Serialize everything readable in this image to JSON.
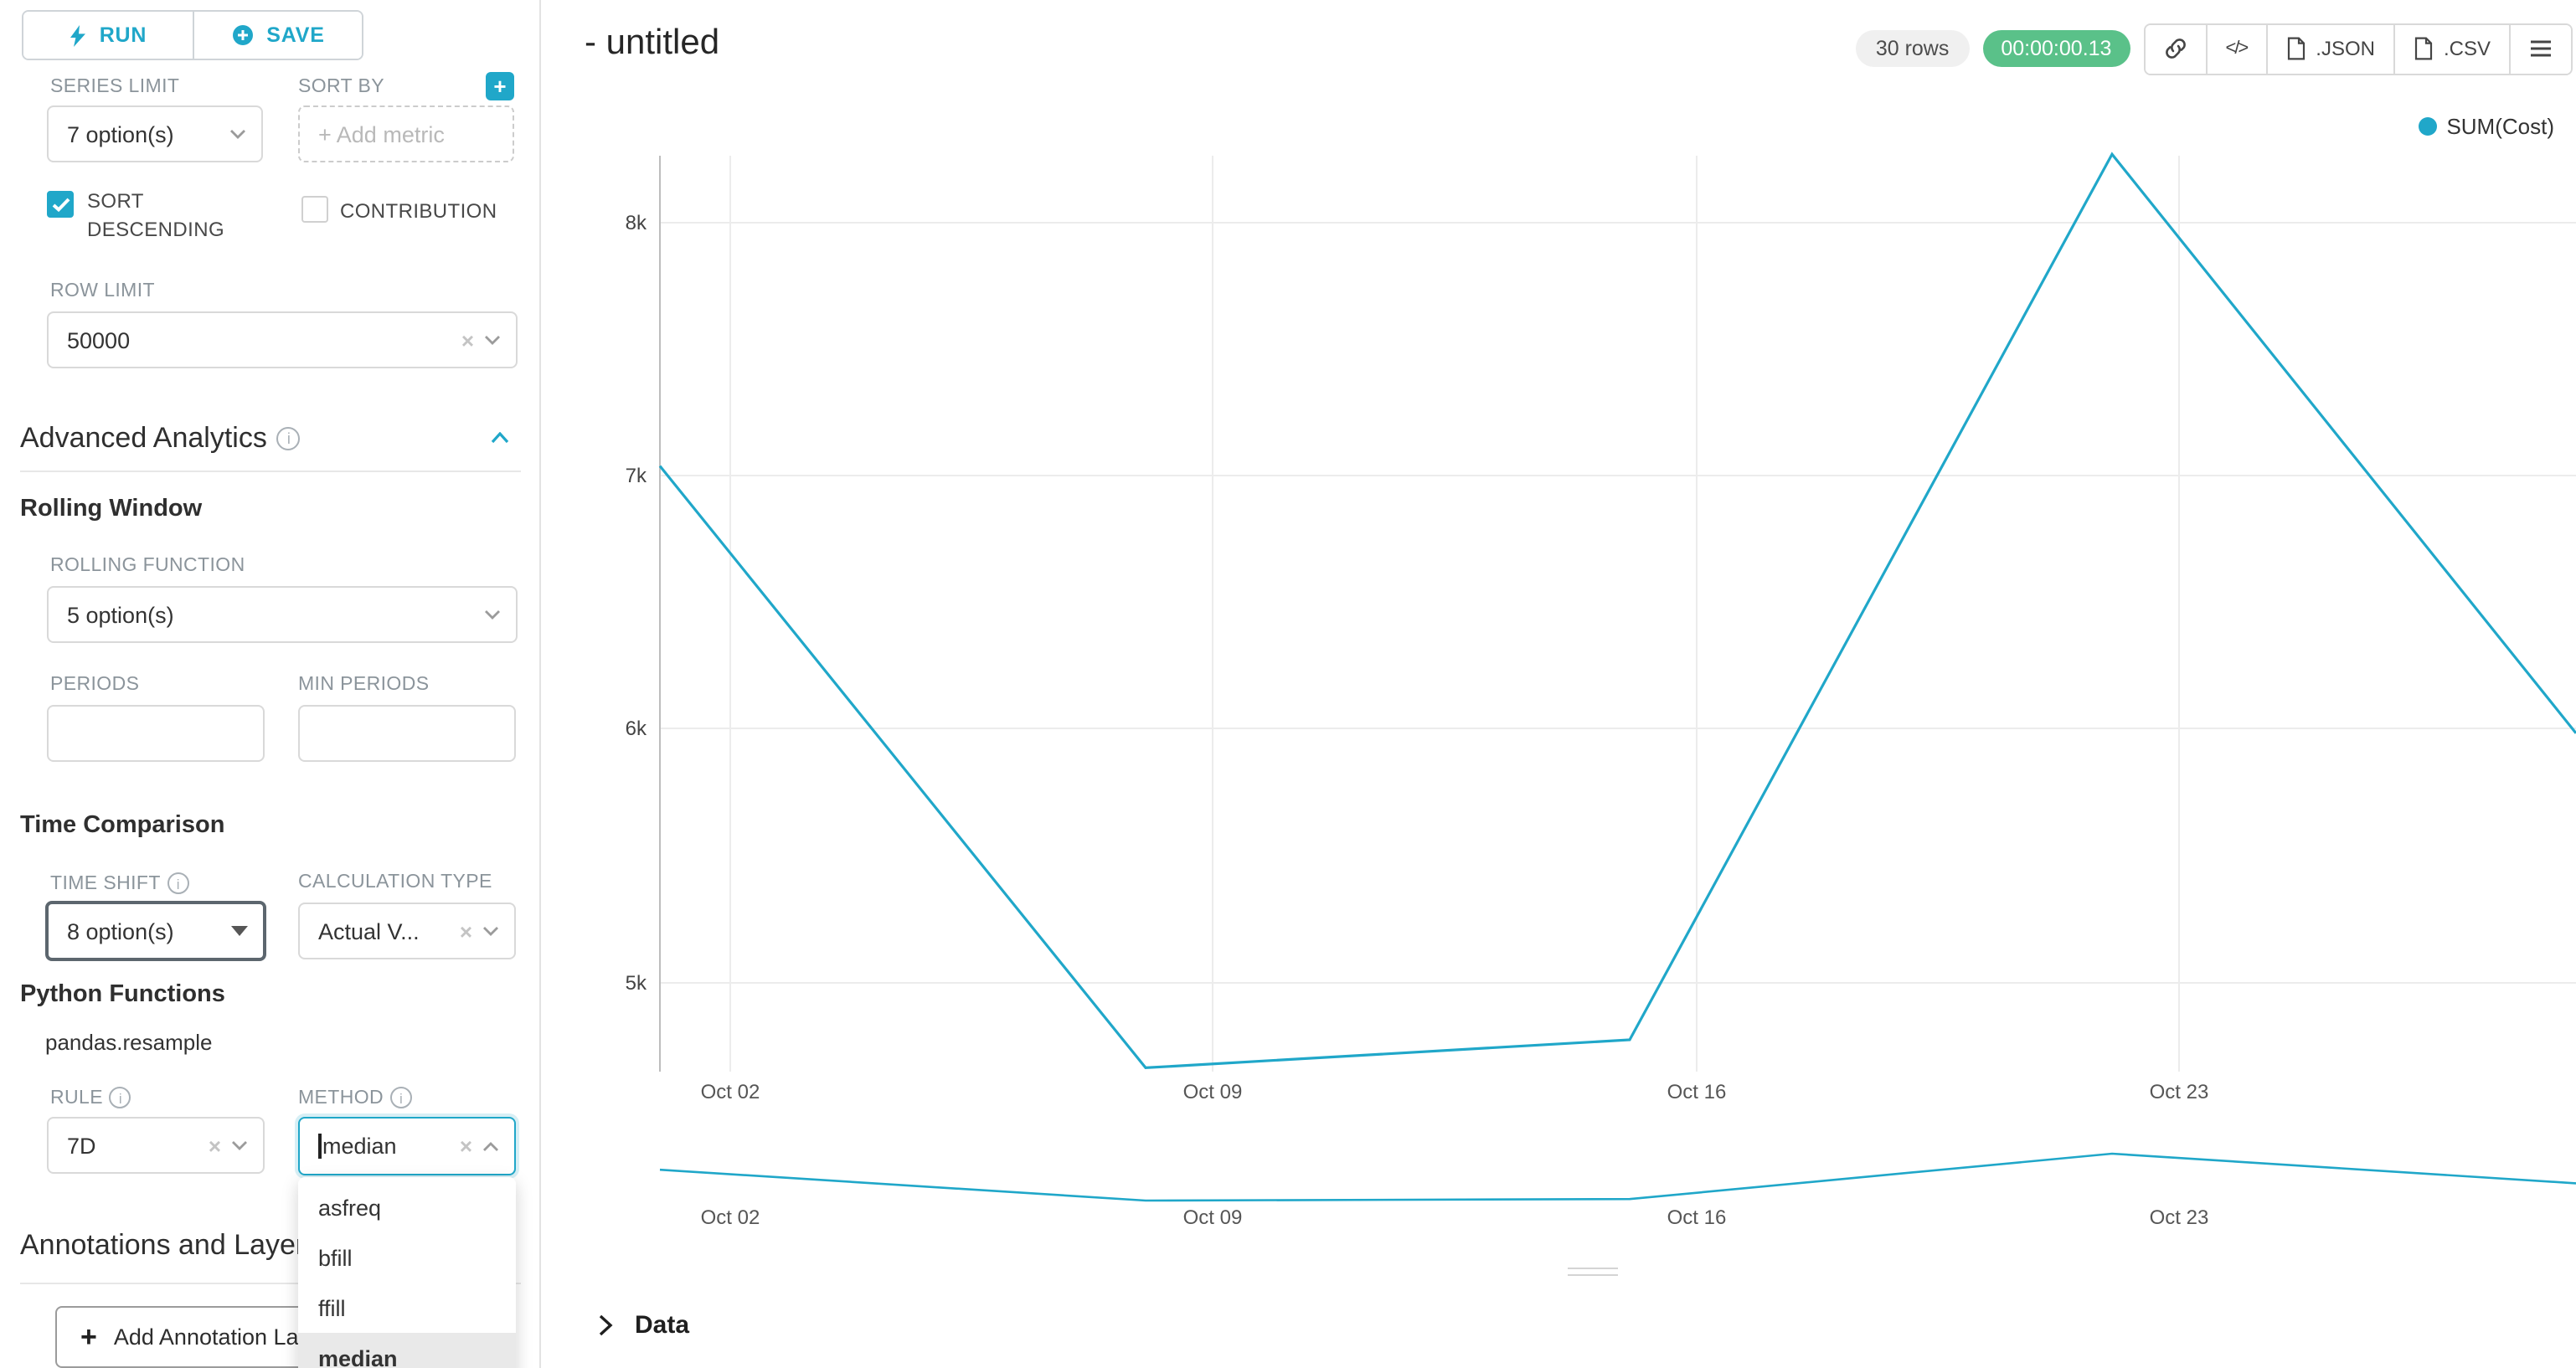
{
  "colors": {
    "primary": "#20a7c9",
    "success": "#5ac189",
    "series": "#20a7c9",
    "grid": "#ececec"
  },
  "sidebar": {
    "run": "RUN",
    "save": "SAVE",
    "series_limit_label": "SERIES LIMIT",
    "series_limit_value": "7 option(s)",
    "sort_by_label": "SORT BY",
    "sort_by_placeholder": "Add metric",
    "sort_descending_label": "SORT DESCENDING",
    "sort_descending_checked": true,
    "contribution_label": "CONTRIBUTION",
    "contribution_checked": false,
    "row_limit_label": "ROW LIMIT",
    "row_limit_value": "50000",
    "advanced_analytics_title": "Advanced Analytics",
    "rolling_window_title": "Rolling Window",
    "rolling_function_label": "ROLLING FUNCTION",
    "rolling_function_value": "5 option(s)",
    "periods_label": "PERIODS",
    "min_periods_label": "MIN PERIODS",
    "time_comparison_title": "Time Comparison",
    "time_shift_label": "TIME SHIFT",
    "time_shift_value": "8 option(s)",
    "calculation_type_label": "CALCULATION TYPE",
    "calculation_type_value": "Actual V...",
    "python_functions_title": "Python Functions",
    "python_functions_subtitle": "pandas.resample",
    "rule_label": "RULE",
    "rule_value": "7D",
    "method_label": "METHOD",
    "method_value": "median",
    "method_options": [
      "asfreq",
      "bfill",
      "ffill",
      "median"
    ],
    "method_selected": "median",
    "annotations_title": "Annotations and Layers",
    "add_annotation_label": "Add Annotation Layer"
  },
  "header": {
    "title": "- untitled",
    "rows_badge": "30 rows",
    "timer": "00:00:00.13",
    "export_json": ".JSON",
    "export_csv": ".CSV"
  },
  "chart_data": {
    "type": "line",
    "legend_position": "top-right",
    "grid": true,
    "series": [
      {
        "name": "SUM(Cost)",
        "color": "#20a7c9",
        "x": [
          "Oct 01",
          "Oct 08",
          "Oct 15",
          "Oct 22",
          "Oct 29"
        ],
        "values": [
          7040,
          4665,
          4775,
          8270,
          5985
        ]
      }
    ],
    "x_axis": {
      "tick_labels": [
        "Oct 02",
        "Oct 09",
        "Oct 16",
        "Oct 23"
      ]
    },
    "y_axis": {
      "tick_labels": [
        "8k",
        "7k",
        "6k",
        "5k"
      ],
      "tick_values": [
        8000,
        7000,
        6000,
        5000
      ]
    },
    "range_selector": {
      "enabled": true,
      "tick_labels": [
        "Oct 02",
        "Oct 09",
        "Oct 16",
        "Oct 23"
      ]
    }
  },
  "data_panel": {
    "title": "Data"
  }
}
